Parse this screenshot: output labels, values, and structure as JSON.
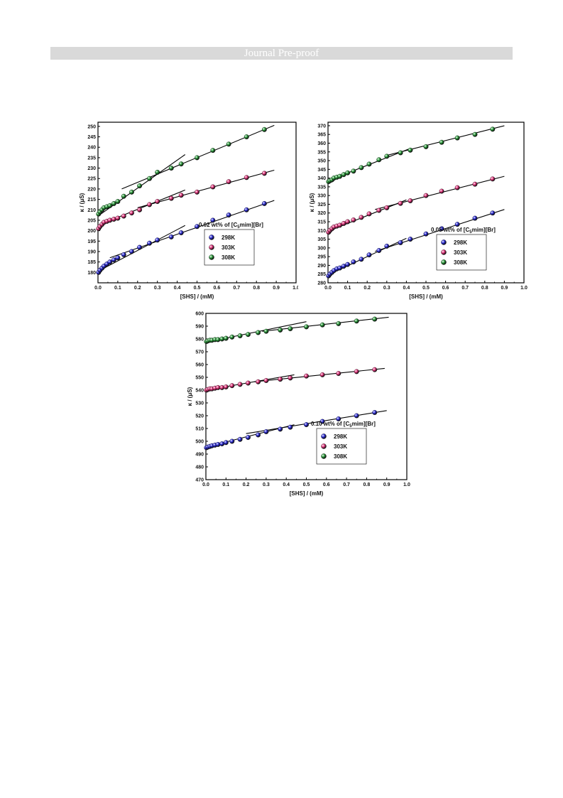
{
  "header": {
    "title": "Journal Pre-proof"
  },
  "chart_data": [
    {
      "type": "scatter",
      "id": "a",
      "title": "",
      "xlabel": "[SHS] / (mM)",
      "ylabel": "κ / (μS)",
      "xlim": [
        0.0,
        1.0
      ],
      "ylim": [
        175,
        252
      ],
      "xticks": [
        "0.0",
        "0.1",
        "0.2",
        "0.3",
        "0.4",
        "0.5",
        "0.6",
        "0.7",
        "0.8",
        "0.9",
        "1.0"
      ],
      "yticks": [
        "180",
        "185",
        "190",
        "195",
        "200",
        "205",
        "210",
        "215",
        "220",
        "225",
        "230",
        "235",
        "240",
        "245",
        "250"
      ],
      "legend": {
        "position": "bottom-right",
        "title_parts": [
          "0.02 wt% of [C",
          "5",
          "mim][Br]"
        ],
        "entries": [
          "298K",
          "303K",
          "308K"
        ]
      },
      "series": [
        {
          "name": "298K",
          "color": "#2b2bd6",
          "x": [
            0.003,
            0.01,
            0.02,
            0.03,
            0.045,
            0.06,
            0.08,
            0.1,
            0.13,
            0.17,
            0.21,
            0.26,
            0.3,
            0.37,
            0.42,
            0.5,
            0.58,
            0.66,
            0.75,
            0.84
          ],
          "y": [
            180,
            181,
            182,
            183,
            184,
            185,
            186,
            187,
            188.5,
            190,
            192,
            194,
            195.5,
            197,
            199,
            202,
            205,
            207.5,
            210,
            213
          ],
          "fits": [
            [
              0.0,
              180.5,
              0.44,
              202.5
            ],
            [
              0.06,
              187,
              0.89,
              214.5
            ]
          ]
        },
        {
          "name": "303K",
          "color": "#e0337a",
          "x": [
            0.003,
            0.01,
            0.02,
            0.03,
            0.045,
            0.06,
            0.08,
            0.1,
            0.13,
            0.17,
            0.21,
            0.26,
            0.3,
            0.37,
            0.42,
            0.5,
            0.58,
            0.66,
            0.75,
            0.84
          ],
          "y": [
            201,
            202,
            203,
            204,
            204.5,
            205,
            205.5,
            206,
            207,
            208.5,
            210,
            212.5,
            214,
            215.5,
            217,
            218.5,
            221,
            223.5,
            225.5,
            227.5
          ],
          "fits": [
            [
              0.0,
              202.5,
              0.44,
              219.5
            ],
            [
              0.2,
              211,
              0.89,
              229
            ]
          ]
        },
        {
          "name": "308K",
          "color": "#2a9a3a",
          "x": [
            0.003,
            0.01,
            0.02,
            0.03,
            0.045,
            0.06,
            0.08,
            0.1,
            0.13,
            0.17,
            0.21,
            0.26,
            0.3,
            0.37,
            0.42,
            0.5,
            0.58,
            0.66,
            0.75,
            0.84
          ],
          "y": [
            208,
            209,
            210,
            211,
            211.5,
            212,
            213,
            214,
            216.5,
            218.5,
            221.5,
            225,
            228,
            230,
            232,
            235,
            238.5,
            241.5,
            245,
            248.5
          ],
          "fits": [
            [
              0.0,
              207,
              0.44,
              236.5
            ],
            [
              0.12,
              220,
              0.89,
              250.5
            ]
          ]
        }
      ]
    },
    {
      "type": "scatter",
      "id": "b",
      "title": "",
      "xlabel": "[SHS] / (mM)",
      "ylabel": "κ / (μS)",
      "xlim": [
        0.0,
        1.0
      ],
      "ylim": [
        280,
        372
      ],
      "xticks": [
        "0.0",
        "0.1",
        "0.2",
        "0.3",
        "0.4",
        "0.5",
        "0.6",
        "0.7",
        "0.8",
        "0.9",
        "1.0"
      ],
      "yticks": [
        "280",
        "285",
        "290",
        "295",
        "300",
        "305",
        "310",
        "315",
        "320",
        "325",
        "330",
        "335",
        "340",
        "345",
        "350",
        "355",
        "360",
        "365",
        "370"
      ],
      "legend": {
        "position": "bottom-right",
        "title_parts": [
          "0.05 wt% of [C",
          "5",
          "mim][Br]"
        ],
        "entries": [
          "298K",
          "303K",
          "308K"
        ]
      },
      "series": [
        {
          "name": "298K",
          "color": "#2b2bd6",
          "x": [
            0.003,
            0.01,
            0.02,
            0.03,
            0.045,
            0.06,
            0.08,
            0.1,
            0.13,
            0.17,
            0.21,
            0.26,
            0.3,
            0.37,
            0.42,
            0.5,
            0.58,
            0.66,
            0.75,
            0.84
          ],
          "y": [
            284,
            285,
            286,
            287,
            288,
            288.5,
            289.5,
            290.5,
            292,
            293.5,
            296,
            298.5,
            301,
            303,
            305,
            308,
            311,
            313.5,
            317,
            320
          ],
          "fits": [
            [
              0.0,
              284.5,
              0.4,
              305.5
            ],
            [
              0.24,
              298,
              0.9,
              322
            ]
          ]
        },
        {
          "name": "303K",
          "color": "#e0337a",
          "x": [
            0.003,
            0.01,
            0.02,
            0.03,
            0.045,
            0.06,
            0.08,
            0.1,
            0.13,
            0.17,
            0.21,
            0.26,
            0.3,
            0.37,
            0.42,
            0.5,
            0.58,
            0.66,
            0.75,
            0.84
          ],
          "y": [
            309,
            310,
            311,
            312,
            312.5,
            313,
            314,
            315,
            316,
            317.5,
            319.5,
            321.5,
            323,
            325.5,
            327,
            330,
            332.5,
            334.5,
            336.5,
            339.5
          ],
          "fits": [
            [
              0.0,
              309.5,
              0.4,
              327.5
            ],
            [
              0.24,
              322,
              0.9,
              341
            ]
          ]
        },
        {
          "name": "308K",
          "color": "#2a9a3a",
          "x": [
            0.003,
            0.01,
            0.02,
            0.03,
            0.045,
            0.06,
            0.08,
            0.1,
            0.13,
            0.17,
            0.21,
            0.26,
            0.3,
            0.37,
            0.42,
            0.5,
            0.58,
            0.66,
            0.75,
            0.84
          ],
          "y": [
            338,
            338.5,
            339,
            340,
            340.5,
            341,
            342,
            343,
            344,
            346,
            348,
            350.5,
            352.5,
            354.5,
            356,
            358,
            360.5,
            363,
            365,
            368
          ],
          "fits": [
            [
              0.0,
              338.5,
              0.42,
              357
            ],
            [
              0.3,
              353,
              0.9,
              370
            ]
          ]
        }
      ]
    },
    {
      "type": "scatter",
      "id": "c",
      "title": "",
      "xlabel": "[SHS] / (mM)",
      "ylabel": "κ / (μS)",
      "xlim": [
        0.0,
        1.0
      ],
      "ylim": [
        470,
        600
      ],
      "xticks": [
        "0.0",
        "0.1",
        "0.2",
        "0.3",
        "0.4",
        "0.5",
        "0.6",
        "0.7",
        "0.8",
        "0.9",
        "1.0"
      ],
      "yticks": [
        "470",
        "480",
        "490",
        "500",
        "510",
        "520",
        "530",
        "540",
        "550",
        "560",
        "570",
        "580",
        "590",
        "600"
      ],
      "legend": {
        "position": "bottom-right",
        "title_parts": [
          "0.10 wt% of [C",
          "5",
          "mim][Br]"
        ],
        "entries": [
          "298K",
          "303K",
          "308K"
        ]
      },
      "series": [
        {
          "name": "298K",
          "color": "#2b2bd6",
          "x": [
            0.003,
            0.01,
            0.02,
            0.03,
            0.045,
            0.06,
            0.08,
            0.1,
            0.13,
            0.17,
            0.21,
            0.26,
            0.3,
            0.37,
            0.42,
            0.5,
            0.58,
            0.66,
            0.75,
            0.84
          ],
          "y": [
            495,
            495.5,
            496,
            496.5,
            497,
            497.5,
            498,
            499,
            500,
            501.5,
            503,
            505,
            507.5,
            509.5,
            511,
            513,
            515.5,
            517.5,
            520,
            522.5
          ],
          "fits": [
            [
              0.0,
              495.5,
              0.44,
              513
            ],
            [
              0.2,
              506,
              0.9,
              524
            ]
          ]
        },
        {
          "name": "303K",
          "color": "#e0337a",
          "x": [
            0.003,
            0.01,
            0.02,
            0.03,
            0.045,
            0.06,
            0.08,
            0.1,
            0.13,
            0.17,
            0.21,
            0.26,
            0.3,
            0.37,
            0.42,
            0.5,
            0.58,
            0.66,
            0.75,
            0.84
          ],
          "y": [
            540,
            540.5,
            541,
            541,
            541.5,
            542,
            542,
            542.5,
            543.5,
            544.5,
            545.5,
            546.5,
            547.5,
            548.5,
            549.5,
            551,
            552,
            553,
            554.5,
            556
          ],
          "fits": [
            [
              0.0,
              540,
              0.44,
              552
            ],
            [
              0.24,
              546.5,
              0.89,
              557
            ]
          ]
        },
        {
          "name": "308K",
          "color": "#2a9a3a",
          "x": [
            0.003,
            0.01,
            0.02,
            0.03,
            0.045,
            0.06,
            0.08,
            0.1,
            0.13,
            0.17,
            0.21,
            0.26,
            0.3,
            0.37,
            0.42,
            0.5,
            0.58,
            0.66,
            0.75,
            0.84
          ],
          "y": [
            578,
            578.5,
            579,
            579,
            579.5,
            579.5,
            580,
            580.5,
            581.5,
            582.5,
            583.5,
            585,
            586,
            587,
            588,
            589.5,
            591,
            592,
            594,
            595.5
          ],
          "fits": [
            [
              0.0,
              577.5,
              0.5,
              593.5
            ],
            [
              0.28,
              586,
              0.91,
              597
            ]
          ]
        }
      ]
    }
  ]
}
